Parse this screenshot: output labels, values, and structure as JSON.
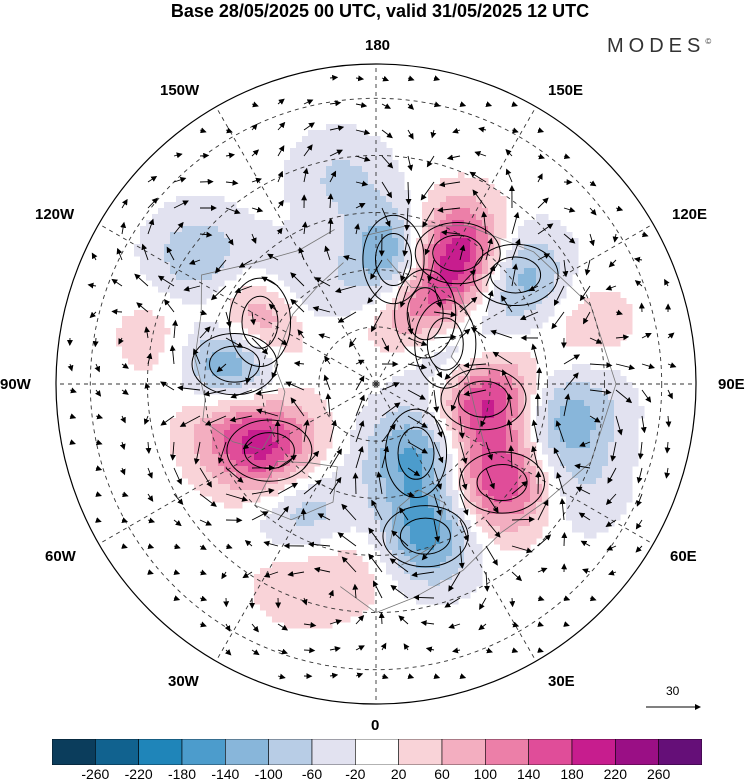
{
  "title": "Base 28/05/2025 00 UTC, valid 31/05/2025 12 UTC",
  "brand": "MODES",
  "brand_mark": "©",
  "map": {
    "projection": "north-polar-stereographic",
    "longitude_labels": [
      "180",
      "150E",
      "120E",
      "90E",
      "60E",
      "30E",
      "0",
      "30W",
      "60W",
      "90W",
      "120W",
      "150W"
    ],
    "colors": {
      "coast": "#666666",
      "graticule": "#333333",
      "arrow": "#000000",
      "contour": "#000000"
    },
    "field": {
      "anomalies": [
        {
          "lon": 172,
          "colat": 22,
          "value": -200
        },
        {
          "lon": 148,
          "colat": 27,
          "value": 250
        },
        {
          "lon": 145,
          "colat": 15,
          "value": 230
        },
        {
          "lon": 128,
          "colat": 31,
          "value": -150
        },
        {
          "lon": 120,
          "colat": 14,
          "value": -190
        },
        {
          "lon": 82,
          "colat": 19,
          "value": 215
        },
        {
          "lon": 77,
          "colat": 33,
          "value": -120
        },
        {
          "lon": 52,
          "colat": 28,
          "value": 190
        },
        {
          "lon": 30,
          "colat": 14,
          "value": -150
        },
        {
          "lon": 18,
          "colat": 28,
          "value": -165
        },
        {
          "lon": -3,
          "colat": 31,
          "value": 50
        },
        {
          "lon": -22,
          "colat": 36,
          "value": 60
        },
        {
          "lon": -30,
          "colat": 26,
          "value": -110
        },
        {
          "lon": -58,
          "colat": 22,
          "value": 170
        },
        {
          "lon": -78,
          "colat": 26,
          "value": 120
        },
        {
          "lon": -98,
          "colat": 25,
          "value": -250
        },
        {
          "lon": -118,
          "colat": 23,
          "value": 210
        },
        {
          "lon": -140,
          "colat": 22,
          "value": -125
        },
        {
          "lon": -125,
          "colat": 38,
          "value": -100
        },
        {
          "lon": -160,
          "colat": 24,
          "value": 50
        },
        {
          "lon": 104,
          "colat": 38,
          "value": 60
        },
        {
          "lon": 90,
          "colat": 38,
          "value": -40
        },
        {
          "lon": 62,
          "colat": 40,
          "value": -50
        },
        {
          "lon": -103,
          "colat": 38,
          "value": 50
        },
        {
          "lon": -170,
          "colat": 36,
          "value": -70
        }
      ]
    },
    "wind_scale_label": "30"
  },
  "colorbar": {
    "tick_labels": [
      "-260",
      "-220",
      "-180",
      "-140",
      "-100",
      "-60",
      "-20",
      "20",
      "60",
      "100",
      "140",
      "180",
      "220",
      "260"
    ],
    "levels": [
      -300,
      -260,
      -220,
      -180,
      -140,
      -100,
      -60,
      -20,
      20,
      60,
      100,
      140,
      180,
      220,
      260,
      300
    ],
    "colors": [
      "#0b3d5c",
      "#11628f",
      "#1f85b9",
      "#4c9ccc",
      "#88b6da",
      "#b8cde6",
      "#e2e2f0",
      "#ffffff",
      "#f9d3d8",
      "#f3aec0",
      "#ec7fa8",
      "#e04d99",
      "#c71d8e",
      "#9a0f85",
      "#650f78"
    ]
  }
}
